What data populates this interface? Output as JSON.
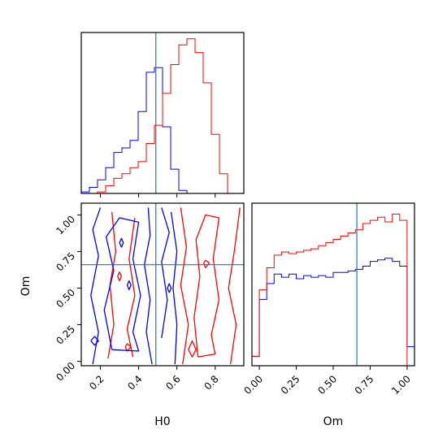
{
  "chart_data": {
    "type": "corner",
    "parameters": [
      "H0",
      "Om"
    ],
    "colors": {
      "blue": "#0000ff",
      "red": "#ff0000",
      "truth": "#1f77b4"
    },
    "truth": {
      "H0": 0.49,
      "Om": 0.66
    },
    "panels": {
      "h0_hist": {
        "xlim": [
          0.1,
          0.95
        ],
        "bins": [
          0.1,
          0.1425,
          0.185,
          0.2275,
          0.27,
          0.3125,
          0.355,
          0.3975,
          0.44,
          0.4825,
          0.525,
          0.5675,
          0.61,
          0.6525,
          0.695,
          0.7375,
          0.78,
          0.8225,
          0.865,
          0.9075,
          0.95
        ],
        "blue_counts": [
          1,
          4,
          9,
          17,
          27,
          30,
          35,
          54,
          80,
          83,
          44,
          16,
          2,
          0,
          0,
          0,
          0,
          0,
          0,
          0
        ],
        "red_counts": [
          0,
          0,
          1,
          5,
          10,
          13,
          17,
          21,
          33,
          45,
          66,
          85,
          98,
          102,
          93,
          73,
          39,
          13,
          0,
          0
        ]
      },
      "om_hist": {
        "xlim": [
          -0.05,
          1.05
        ],
        "bins": [
          -0.05,
          0.0,
          0.05,
          0.1,
          0.15,
          0.2,
          0.25,
          0.3,
          0.35,
          0.4,
          0.45,
          0.5,
          0.55,
          0.6,
          0.65,
          0.7,
          0.75,
          0.8,
          0.85,
          0.9,
          0.95,
          1.0,
          1.05
        ],
        "blue_counts": [
          6,
          42,
          52,
          58,
          56,
          58,
          55,
          57,
          56,
          57,
          56,
          59,
          59,
          60,
          61,
          63,
          66,
          67,
          68,
          66,
          63,
          12
        ],
        "red_counts": [
          6,
          48,
          62,
          70,
          72,
          71,
          72,
          73,
          74,
          76,
          78,
          80,
          82,
          84,
          86,
          90,
          92,
          94,
          91,
          96,
          92,
          0
        ],
        "ticks": [
          "0.00",
          "0.25",
          "0.50",
          "0.75",
          "1.00"
        ],
        "xlabel": "Om"
      },
      "joint": {
        "xlim": [
          0.1,
          0.95
        ],
        "ylim": [
          -0.03,
          1.08
        ],
        "xticks": [
          "0.2",
          "0.4",
          "0.6",
          "0.8"
        ],
        "yticks": [
          "0.00",
          "0.25",
          "0.50",
          "0.75",
          "1.00"
        ],
        "xlabel": "H0",
        "ylabel": "Om",
        "blue_contours": [
          [
            [
              0.16,
              -0.02
            ],
            [
              0.19,
              0.2
            ],
            [
              0.15,
              0.45
            ],
            [
              0.19,
              0.72
            ],
            [
              0.16,
              0.9
            ],
            [
              0.2,
              1.05
            ]
          ],
          [
            [
              0.47,
              -0.02
            ],
            [
              0.44,
              0.2
            ],
            [
              0.46,
              0.42
            ],
            [
              0.43,
              0.66
            ],
            [
              0.46,
              0.86
            ],
            [
              0.45,
              1.05
            ]
          ],
          [
            [
              0.26,
              0.08
            ],
            [
              0.22,
              0.35
            ],
            [
              0.27,
              0.62
            ],
            [
              0.23,
              0.85
            ],
            [
              0.3,
              0.98
            ],
            [
              0.4,
              0.95
            ],
            [
              0.37,
              0.7
            ],
            [
              0.41,
              0.45
            ],
            [
              0.37,
              0.2
            ],
            [
              0.4,
              0.07
            ],
            [
              0.26,
              0.08
            ]
          ],
          [
            [
              0.52,
              0.16
            ],
            [
              0.55,
              0.42
            ],
            [
              0.52,
              0.68
            ],
            [
              0.56,
              0.88
            ],
            [
              0.52,
              1.05
            ]
          ],
          [
            [
              0.59,
              -0.02
            ],
            [
              0.6,
              0.25
            ],
            [
              0.58,
              0.5
            ],
            [
              0.6,
              0.75
            ],
            [
              0.57,
              1.02
            ]
          ],
          [
            [
              0.15,
              0.14
            ],
            [
              0.17,
              0.17
            ],
            [
              0.19,
              0.14
            ],
            [
              0.17,
              0.11
            ],
            [
              0.15,
              0.14
            ]
          ],
          [
            [
              0.3,
              0.81
            ],
            [
              0.31,
              0.84
            ],
            [
              0.32,
              0.81
            ],
            [
              0.31,
              0.78
            ],
            [
              0.3,
              0.81
            ]
          ],
          [
            [
              0.55,
              0.5
            ],
            [
              0.56,
              0.53
            ],
            [
              0.57,
              0.5
            ],
            [
              0.56,
              0.47
            ],
            [
              0.55,
              0.5
            ]
          ],
          [
            [
              0.34,
              0.52
            ],
            [
              0.35,
              0.55
            ],
            [
              0.36,
              0.52
            ],
            [
              0.35,
              0.49
            ],
            [
              0.34,
              0.52
            ]
          ]
        ],
        "red_contours": [
          [
            [
              0.63,
              -0.02
            ],
            [
              0.66,
              0.25
            ],
            [
              0.62,
              0.52
            ],
            [
              0.65,
              0.78
            ],
            [
              0.62,
              1.05
            ]
          ],
          [
            [
              0.71,
              0.03
            ],
            [
              0.69,
              0.3
            ],
            [
              0.72,
              0.58
            ],
            [
              0.7,
              0.83
            ],
            [
              0.75,
              1.0
            ],
            [
              0.82,
              0.98
            ],
            [
              0.79,
              0.7
            ],
            [
              0.82,
              0.42
            ],
            [
              0.78,
              0.18
            ],
            [
              0.8,
              0.05
            ],
            [
              0.71,
              0.03
            ]
          ],
          [
            [
              0.88,
              -0.02
            ],
            [
              0.91,
              0.25
            ],
            [
              0.87,
              0.5
            ],
            [
              0.9,
              0.75
            ],
            [
              0.93,
              1.05
            ]
          ],
          [
            [
              0.24,
              0.02
            ],
            [
              0.27,
              0.25
            ],
            [
              0.25,
              0.52
            ],
            [
              0.28,
              0.75
            ],
            [
              0.26,
              1.02
            ]
          ],
          [
            [
              0.37,
              0.03
            ],
            [
              0.34,
              0.22
            ],
            [
              0.38,
              0.45
            ],
            [
              0.35,
              0.7
            ],
            [
              0.38,
              0.98
            ]
          ],
          [
            [
              0.33,
              0.1
            ],
            [
              0.34,
              0.12
            ],
            [
              0.36,
              0.1
            ],
            [
              0.34,
              0.07
            ],
            [
              0.33,
              0.1
            ]
          ],
          [
            [
              0.66,
              0.08
            ],
            [
              0.68,
              0.14
            ],
            [
              0.7,
              0.08
            ],
            [
              0.68,
              0.03
            ],
            [
              0.66,
              0.08
            ]
          ],
          [
            [
              0.74,
              0.67
            ],
            [
              0.75,
              0.69
            ],
            [
              0.77,
              0.67
            ],
            [
              0.75,
              0.64
            ],
            [
              0.74,
              0.67
            ]
          ],
          [
            [
              0.29,
              0.58
            ],
            [
              0.3,
              0.61
            ],
            [
              0.31,
              0.58
            ],
            [
              0.3,
              0.55
            ],
            [
              0.29,
              0.58
            ]
          ]
        ]
      }
    }
  }
}
